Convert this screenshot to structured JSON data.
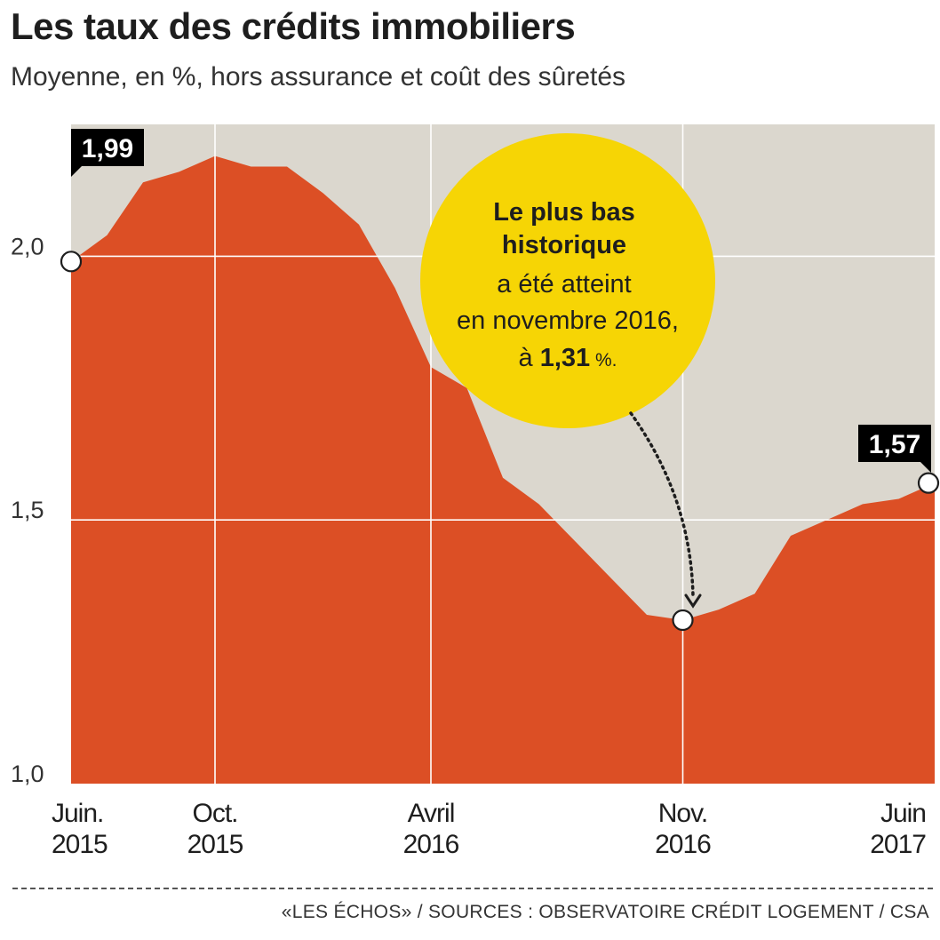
{
  "title": "Les taux des crédits immobiliers",
  "subtitle": "Moyenne, en %, hors assurance et coût des sûretés",
  "source": "«LES ÉCHOS»  / SOURCES : OBSERVATOIRE CRÉDIT LOGEMENT / CSA",
  "colors": {
    "area": "#dc4f25",
    "background": "#dbd7ce",
    "callout": "#f6d505",
    "label_bg": "#000000"
  },
  "callout": {
    "line1": "Le plus bas",
    "line2": "historique",
    "line3": "a été atteint",
    "line4": "en novembre 2016,",
    "line5_prefix": "à ",
    "line5_value": "1,31",
    "line5_suffix": " %."
  },
  "chart_data": {
    "type": "area",
    "title": "Les taux des crédits immobiliers",
    "subtitle": "Moyenne, en %, hors assurance et coût des sûretés",
    "ylim": [
      1.0,
      2.25
    ],
    "yticks": [
      {
        "value": 1.0,
        "label": "1,0"
      },
      {
        "value": 1.5,
        "label": "1,5"
      },
      {
        "value": 2.0,
        "label": "2,0"
      }
    ],
    "xticks": [
      {
        "index": 0,
        "line1": "Juin.",
        "line2": "2015"
      },
      {
        "index": 4,
        "line1": "Oct.",
        "line2": "2015"
      },
      {
        "index": 10,
        "line1": "Avril",
        "line2": "2016"
      },
      {
        "index": 17,
        "line1": "Nov.",
        "line2": "2016"
      },
      {
        "index": 24,
        "line1": "Juin",
        "line2": "2017"
      }
    ],
    "x": [
      "2015-06",
      "2015-07",
      "2015-08",
      "2015-09",
      "2015-10",
      "2015-11",
      "2015-12",
      "2016-01",
      "2016-02",
      "2016-03",
      "2016-04",
      "2016-05",
      "2016-06",
      "2016-07",
      "2016-08",
      "2016-09",
      "2016-10",
      "2016-11",
      "2016-12",
      "2017-01",
      "2017-02",
      "2017-03",
      "2017-04",
      "2017-05",
      "2017-06"
    ],
    "values": [
      1.99,
      2.04,
      2.14,
      2.16,
      2.19,
      2.17,
      2.17,
      2.12,
      2.06,
      1.94,
      1.79,
      1.75,
      1.58,
      1.53,
      1.46,
      1.39,
      1.32,
      1.31,
      1.33,
      1.36,
      1.47,
      1.5,
      1.53,
      1.54,
      1.57
    ],
    "annotations": [
      {
        "index": 0,
        "label": "1,99"
      },
      {
        "index": 17,
        "label": ""
      },
      {
        "index": 24,
        "label": "1,57"
      }
    ]
  }
}
